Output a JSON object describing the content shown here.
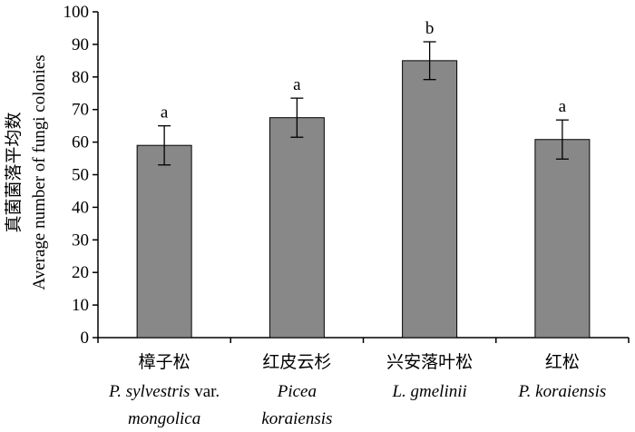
{
  "chart_data": {
    "type": "bar",
    "ylabel_cn": "真菌菌落平均数",
    "ylabel_en": "Average number of fungi colonies",
    "ylim": [
      0,
      100
    ],
    "yticks": [
      "0",
      "10",
      "20",
      "30",
      "40",
      "50",
      "60",
      "70",
      "80",
      "90",
      "100"
    ],
    "categories": [
      {
        "cn": "樟子松",
        "en_line1": "P. sylvestris",
        "en_line1_suffix": " var.",
        "en_line2": "mongolica"
      },
      {
        "cn": "红皮云杉",
        "en_line1": "Picea",
        "en_line1_suffix": "",
        "en_line2": "koraiensis"
      },
      {
        "cn": "兴安落叶松",
        "en_line1": "L. gmelinii",
        "en_line1_suffix": "",
        "en_line2": ""
      },
      {
        "cn": "红松",
        "en_line1": "P. koraiensis",
        "en_line1_suffix": "",
        "en_line2": ""
      }
    ],
    "values": [
      59,
      67.5,
      85,
      60.8
    ],
    "errors": [
      6,
      6,
      5.8,
      6
    ],
    "significance": [
      "a",
      "a",
      "b",
      "a"
    ],
    "bar_color": "#888888",
    "grid": false,
    "legend": "none"
  }
}
